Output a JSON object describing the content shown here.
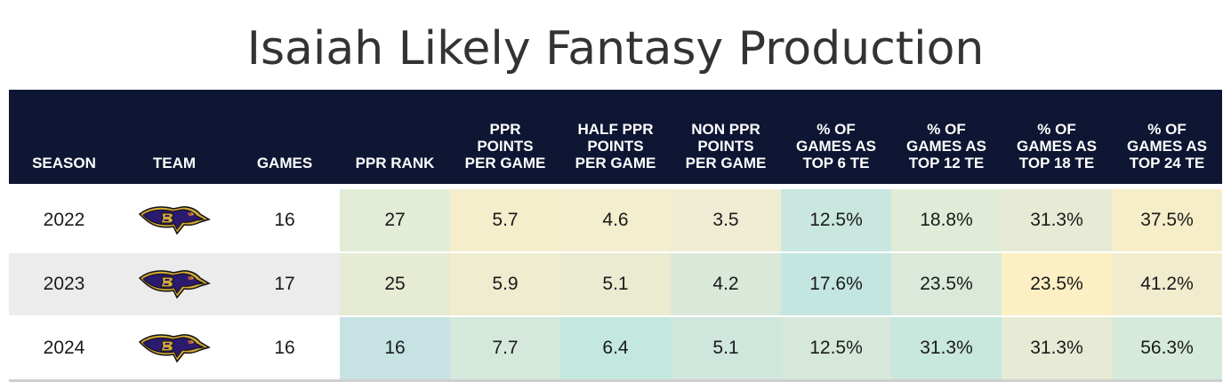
{
  "title": "Isaiah Likely Fantasy Production",
  "columns": [
    "SEASON",
    "TEAM",
    "GAMES",
    "PPR RANK",
    "PPR\nPOINTS\nPER GAME",
    "HALF PPR\nPOINTS\nPER GAME",
    "NON PPR\nPOINTS\nPER GAME",
    "% OF\nGAMES AS\nTOP 6 TE",
    "% OF\nGAMES AS\nTOP 12 TE",
    "% OF\nGAMES AS\nTOP 18 TE",
    "% OF\nGAMES AS\nTOP 24 TE"
  ],
  "team_logo_icon": "ravens-logo-icon",
  "colors": {
    "header_bg": "#0e1633",
    "header_text": "#ffffff",
    "row_shade": "#ececec"
  },
  "rows": [
    {
      "season": "2022",
      "games": "16",
      "values": [
        "27",
        "5.7",
        "4.6",
        "3.5",
        "12.5%",
        "18.8%",
        "31.3%",
        "37.5%"
      ],
      "colors": [
        "#e2ecd6",
        "#f4eecc",
        "#f3eecd",
        "#f0ecd3",
        "#c9e7df",
        "#e0ecd8",
        "#e7ead4",
        "#f6eec9"
      ]
    },
    {
      "season": "2023",
      "games": "17",
      "values": [
        "25",
        "5.9",
        "5.1",
        "4.2",
        "17.6%",
        "23.5%",
        "23.5%",
        "41.2%"
      ],
      "colors": [
        "#e6ebd4",
        "#f0ecd0",
        "#ebebd2",
        "#dae8da",
        "#c3e6e1",
        "#dae9d9",
        "#fcefc3",
        "#f1ecce"
      ]
    },
    {
      "season": "2024",
      "games": "16",
      "values": [
        "16",
        "7.7",
        "6.4",
        "5.1",
        "12.5%",
        "31.3%",
        "31.3%",
        "56.3%"
      ],
      "colors": [
        "#c7e2e3",
        "#d5e8dc",
        "#c4e8df",
        "#cfe6dd",
        "#d6e8da",
        "#c8e7dd",
        "#e7ead4",
        "#d6eadb"
      ]
    }
  ]
}
